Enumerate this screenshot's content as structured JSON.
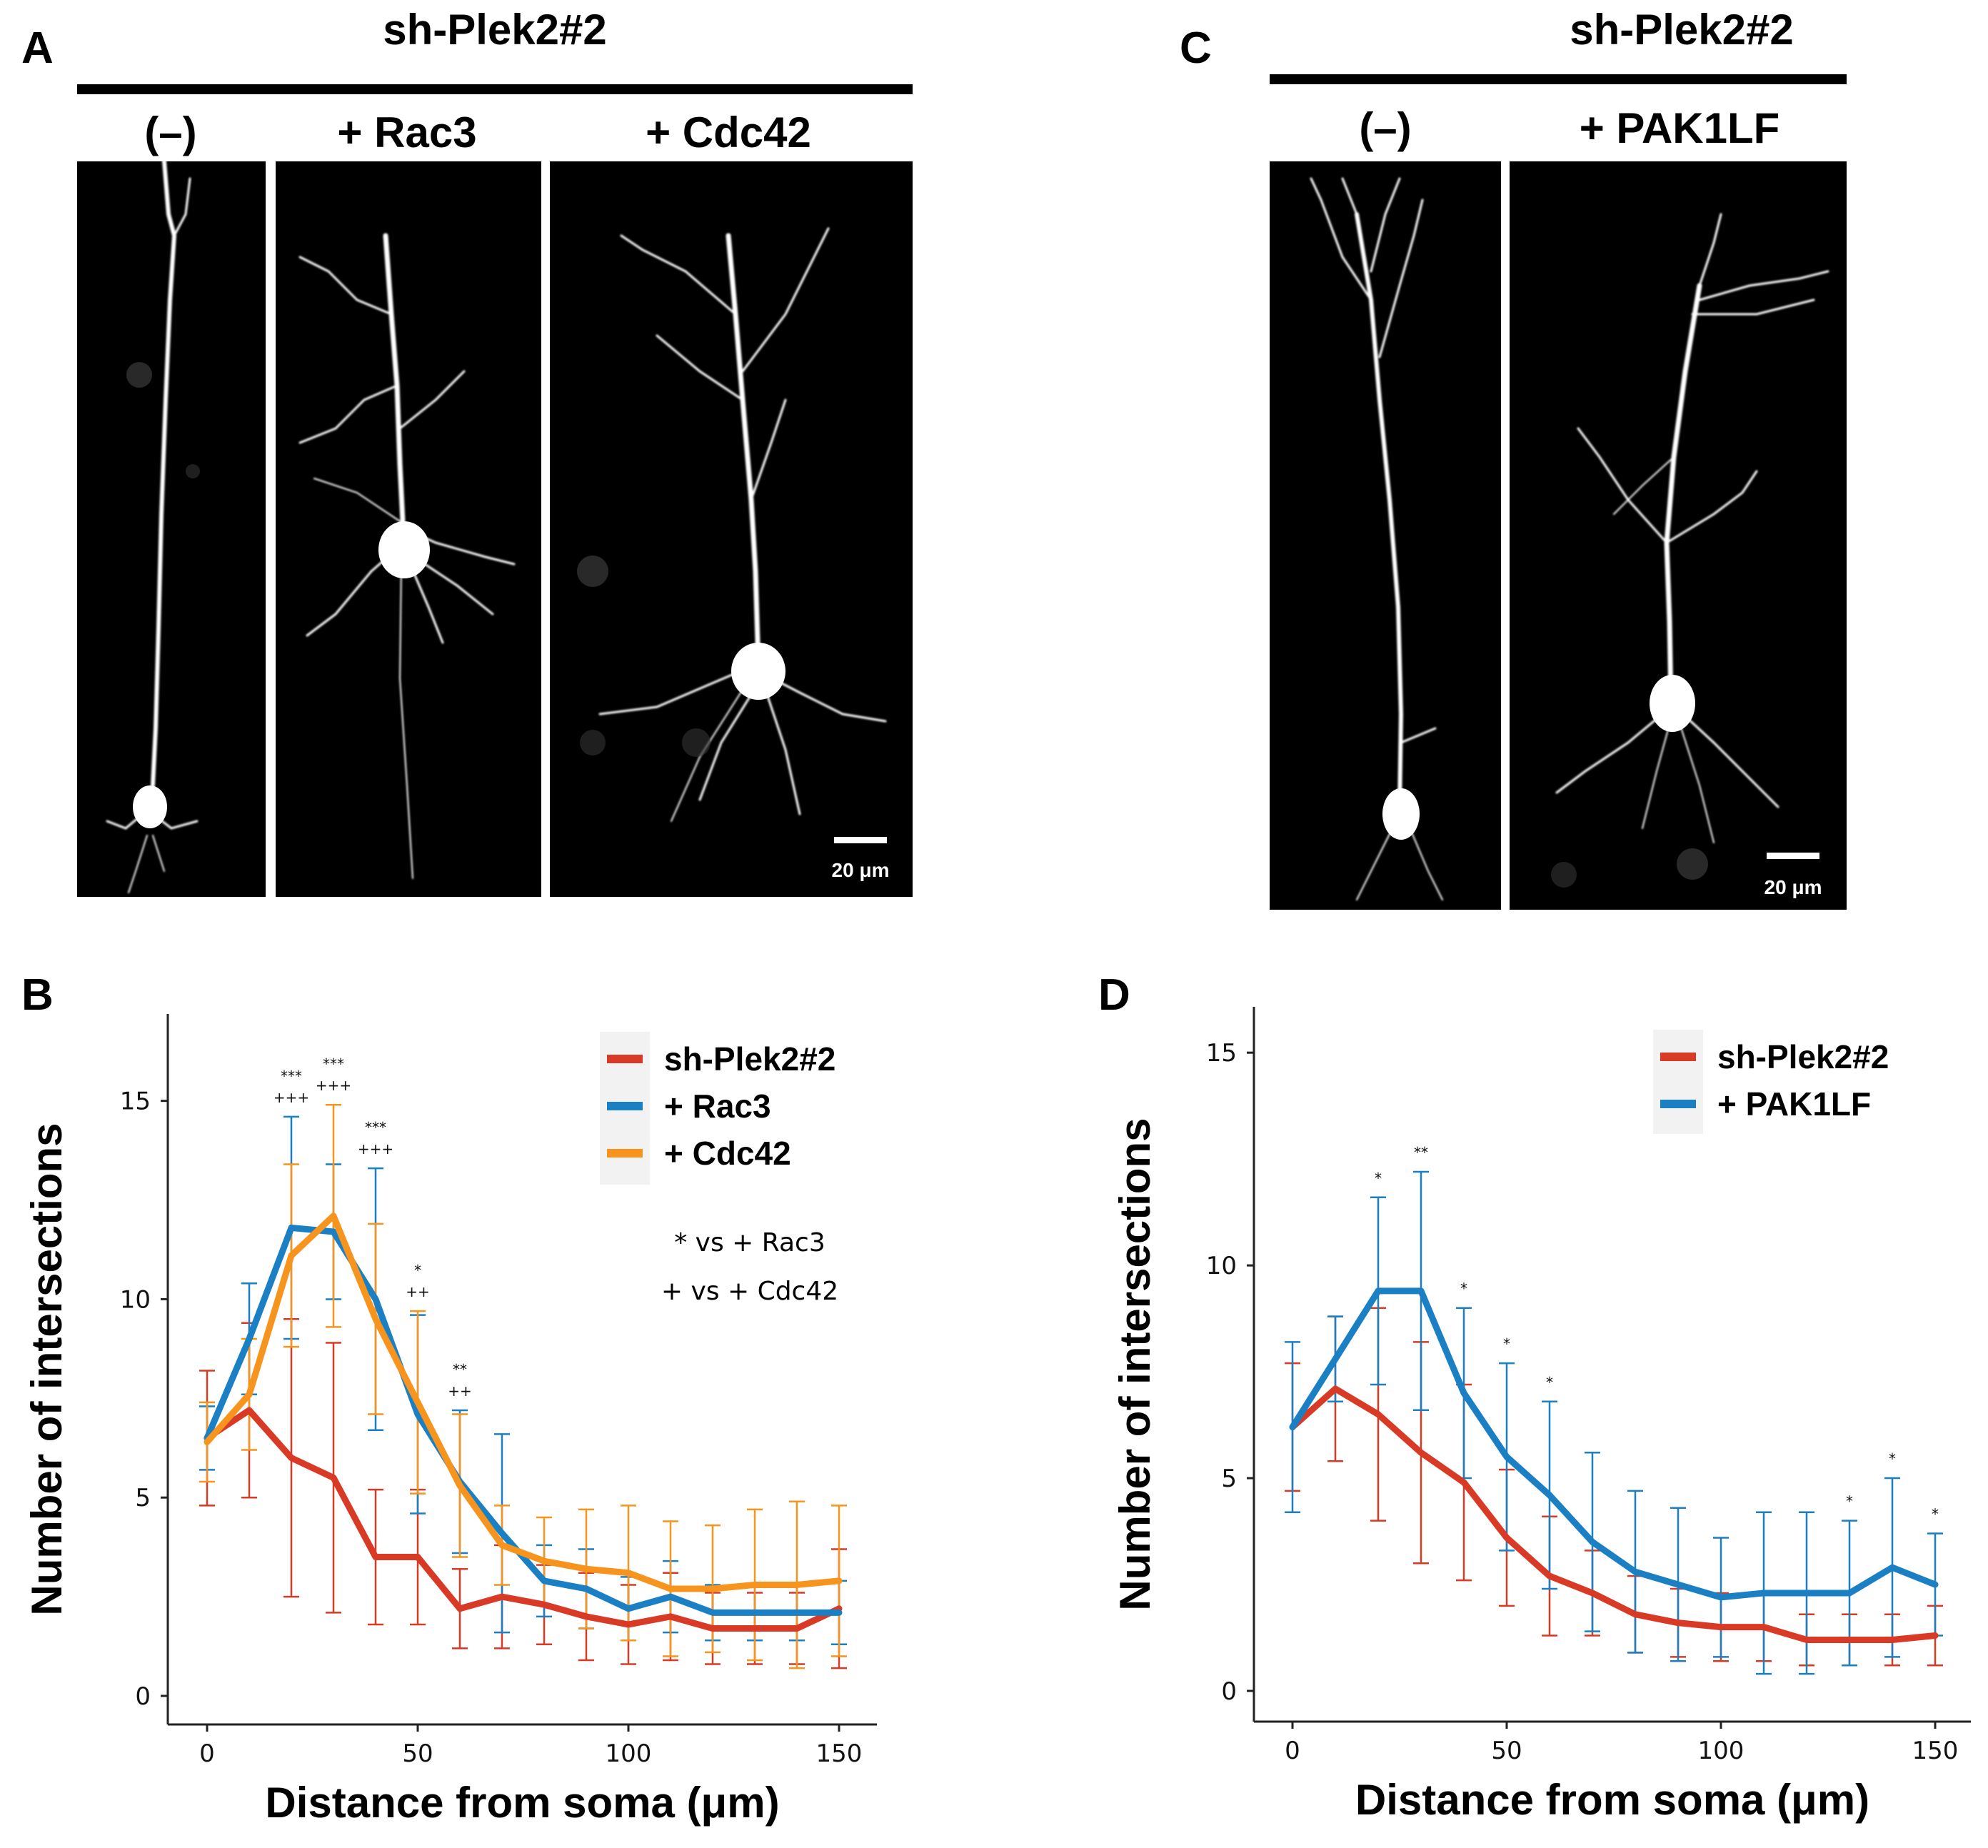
{
  "panels": {
    "A": {
      "letter": "A",
      "group_label": "sh-Plek2#2",
      "conditions": [
        "(–)",
        "+ Rac3",
        "+ Cdc42"
      ],
      "scale_bar": "20 μm"
    },
    "C": {
      "letter": "C",
      "group_label": "sh-Plek2#2",
      "conditions": [
        "(–)",
        "+ PAK1LF"
      ],
      "scale_bar": "20 μm"
    },
    "B": {
      "letter": "B"
    },
    "D": {
      "letter": "D"
    }
  },
  "colors": {
    "red": "#d93a26",
    "blue": "#1b7fc4",
    "orange": "#f7941d"
  },
  "chart_data": [
    {
      "panel": "B",
      "type": "line",
      "xlabel": "Distance from soma (μm)",
      "ylabel": "Number of intersections",
      "xlim": [
        0,
        150
      ],
      "ylim": [
        0,
        18
      ],
      "xticks": [
        0,
        50,
        100,
        150
      ],
      "yticks": [
        0,
        5,
        10,
        15
      ],
      "grid": false,
      "legend_position": "top-right",
      "x": [
        0,
        10,
        20,
        30,
        40,
        50,
        60,
        70,
        80,
        90,
        100,
        110,
        120,
        130,
        140,
        150
      ],
      "series": [
        {
          "name": "sh-Plek2#2",
          "color": "#d93a26",
          "values": [
            6.5,
            7.2,
            6.0,
            5.5,
            3.5,
            3.5,
            2.2,
            2.5,
            2.3,
            2.0,
            1.8,
            2.0,
            1.7,
            1.7,
            1.7,
            2.2
          ],
          "error": [
            1.7,
            2.2,
            3.5,
            3.4,
            1.7,
            1.7,
            1.0,
            1.3,
            1.0,
            1.1,
            1.0,
            1.1,
            0.9,
            0.9,
            0.9,
            1.5
          ]
        },
        {
          "name": "+ Rac3",
          "color": "#1b7fc4",
          "values": [
            6.5,
            9.0,
            11.8,
            11.7,
            10.0,
            7.1,
            5.4,
            4.1,
            2.9,
            2.7,
            2.2,
            2.5,
            2.1,
            2.1,
            2.1,
            2.1
          ],
          "error": [
            0.8,
            1.4,
            2.8,
            1.7,
            3.3,
            2.5,
            1.8,
            2.5,
            0.9,
            1.0,
            0.8,
            0.9,
            0.7,
            0.7,
            0.7,
            0.8
          ]
        },
        {
          "name": "+ Cdc42",
          "color": "#f7941d",
          "values": [
            6.4,
            7.6,
            11.1,
            12.1,
            9.5,
            7.4,
            5.3,
            3.8,
            3.4,
            3.2,
            3.1,
            2.7,
            2.7,
            2.8,
            2.8,
            2.9
          ],
          "error": [
            1.0,
            1.4,
            2.3,
            2.8,
            2.4,
            2.3,
            1.8,
            1.0,
            1.1,
            1.5,
            1.7,
            1.7,
            1.6,
            1.9,
            2.1,
            1.9
          ]
        }
      ],
      "significance": [
        {
          "x": 20,
          "stars": "***",
          "plus": "+++"
        },
        {
          "x": 30,
          "stars": "***",
          "plus": "+++"
        },
        {
          "x": 40,
          "stars": "***",
          "plus": "+++"
        },
        {
          "x": 50,
          "stars": "*",
          "plus": "++"
        },
        {
          "x": 60,
          "stars": "**",
          "plus": "++"
        }
      ],
      "annotations": [
        "* vs + Rac3",
        "+ vs + Cdc42"
      ]
    },
    {
      "panel": "D",
      "type": "line",
      "xlabel": "Distance from soma (μm)",
      "ylabel": "Number of intersections",
      "xlim": [
        0,
        150
      ],
      "ylim": [
        0,
        17
      ],
      "xticks": [
        0,
        50,
        100,
        150
      ],
      "yticks": [
        0,
        5,
        10,
        15
      ],
      "grid": false,
      "legend_position": "top-right",
      "x": [
        0,
        10,
        20,
        30,
        40,
        50,
        60,
        70,
        80,
        90,
        100,
        110,
        120,
        130,
        140,
        150
      ],
      "series": [
        {
          "name": "sh-Plek2#2",
          "color": "#d93a26",
          "values": [
            6.2,
            7.1,
            6.5,
            5.6,
            4.9,
            3.6,
            2.7,
            2.3,
            1.8,
            1.6,
            1.5,
            1.5,
            1.2,
            1.2,
            1.2,
            1.3
          ],
          "error": [
            1.5,
            1.7,
            2.5,
            2.6,
            2.3,
            1.6,
            1.4,
            1.0,
            0.9,
            0.8,
            0.8,
            0.8,
            0.6,
            0.6,
            0.6,
            0.7
          ]
        },
        {
          "name": "+ PAK1LF",
          "color": "#1b7fc4",
          "values": [
            6.2,
            7.8,
            9.4,
            9.4,
            7.0,
            5.5,
            4.6,
            3.5,
            2.8,
            2.5,
            2.2,
            2.3,
            2.3,
            2.3,
            2.9,
            2.5
          ],
          "error": [
            2.0,
            1.0,
            2.2,
            2.8,
            2.0,
            2.2,
            2.2,
            2.1,
            1.9,
            1.8,
            1.4,
            1.9,
            1.9,
            1.7,
            2.1,
            1.2
          ]
        }
      ],
      "significance": [
        {
          "x": 20,
          "stars": "*"
        },
        {
          "x": 30,
          "stars": "**"
        },
        {
          "x": 40,
          "stars": "*"
        },
        {
          "x": 50,
          "stars": "*"
        },
        {
          "x": 60,
          "stars": "*"
        },
        {
          "x": 130,
          "stars": "*"
        },
        {
          "x": 140,
          "stars": "*"
        },
        {
          "x": 150,
          "stars": "*"
        }
      ]
    }
  ]
}
